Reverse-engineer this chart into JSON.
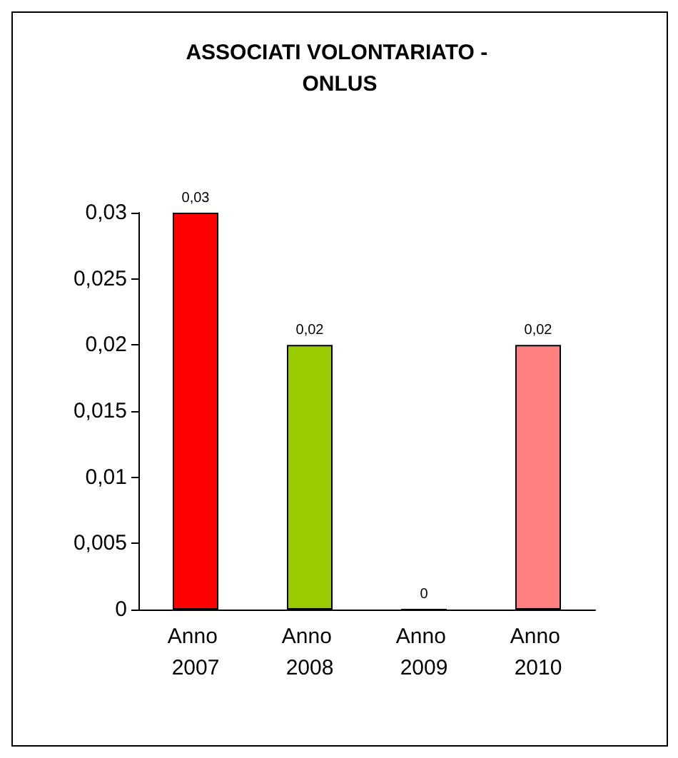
{
  "chart_data": {
    "type": "bar",
    "title": "ASSOCIATI VOLONTARIATO - ONLUS",
    "categories": [
      "Anno 2007",
      "Anno 2008",
      "Anno 2009",
      "Anno 2010"
    ],
    "values": [
      0.03,
      0.02,
      0,
      0.02
    ],
    "colors": [
      "#ff0000",
      "#99cc00",
      "#6666cc",
      "#ff8080"
    ],
    "value_labels": [
      "0,03",
      "0,02",
      "0",
      "0,02"
    ],
    "ylim": [
      0,
      0.03
    ],
    "yticks": [
      0,
      {
        "value": 0.005,
        "label": "0,005"
      },
      {
        "value": 0.01,
        "label": "0,01"
      },
      {
        "value": 0.015,
        "label": "0,015"
      },
      {
        "value": 0.02,
        "label": "0,02"
      },
      {
        "value": 0.025,
        "label": "0,025"
      },
      {
        "value": 0.03,
        "label": "0,03"
      }
    ],
    "grid": false
  }
}
